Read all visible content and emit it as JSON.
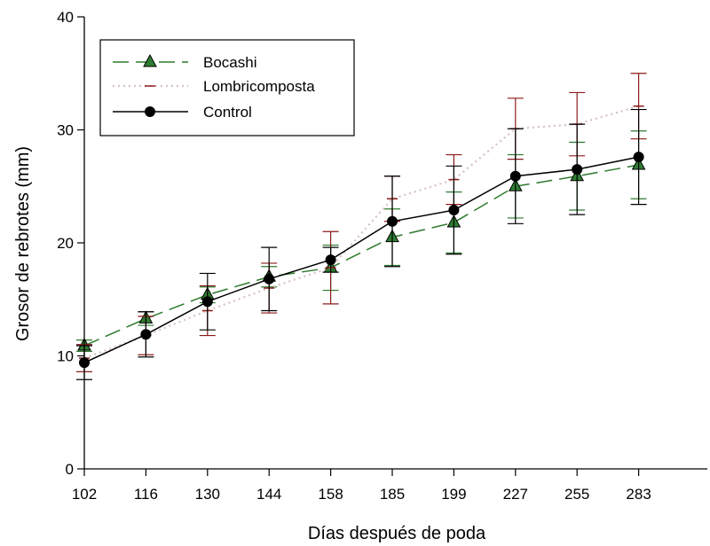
{
  "chart_data": {
    "type": "line",
    "title": "",
    "xlabel": "Días después de poda",
    "ylabel": "Grosor de rebrotes (mm)",
    "ylim": [
      0,
      40
    ],
    "yticks": [
      "0",
      "10",
      "20",
      "30",
      "40"
    ],
    "categories": [
      "102",
      "116",
      "130",
      "144",
      "158",
      "185",
      "199",
      "227",
      "255",
      "283"
    ],
    "grid": false,
    "legend_position": "top-left",
    "series": [
      {
        "name": "Bocashi",
        "color": "#2d7a2d",
        "marker_color": "#2e7d32",
        "line_style": "dashed",
        "marker": "triangle",
        "values": [
          10.9,
          13.3,
          15.4,
          17.0,
          17.8,
          20.5,
          21.8,
          25.0,
          25.9,
          26.9
        ],
        "errors": [
          0.5,
          0.6,
          0.7,
          0.9,
          2.0,
          2.5,
          2.7,
          2.8,
          3.0,
          3.0
        ]
      },
      {
        "name": "Lombricomposta",
        "color": "#d9c0c0",
        "errcolor": "#8b1a1a",
        "line_style": "dotted",
        "marker": "none",
        "values": [
          9.8,
          11.8,
          14.0,
          16.0,
          17.8,
          23.9,
          25.6,
          30.1,
          30.5,
          32.1
        ],
        "errors": [
          1.2,
          1.7,
          2.2,
          2.2,
          3.2,
          2.0,
          2.2,
          2.7,
          2.8,
          2.9
        ]
      },
      {
        "name": "Control",
        "color": "#000000",
        "line_style": "solid",
        "marker": "circle",
        "values": [
          9.4,
          11.9,
          14.8,
          16.8,
          18.5,
          21.9,
          22.9,
          25.9,
          26.5,
          27.6
        ],
        "errors": [
          1.5,
          2.0,
          2.5,
          2.8,
          1.1,
          4.0,
          3.9,
          4.2,
          4.0,
          4.2
        ]
      }
    ]
  }
}
